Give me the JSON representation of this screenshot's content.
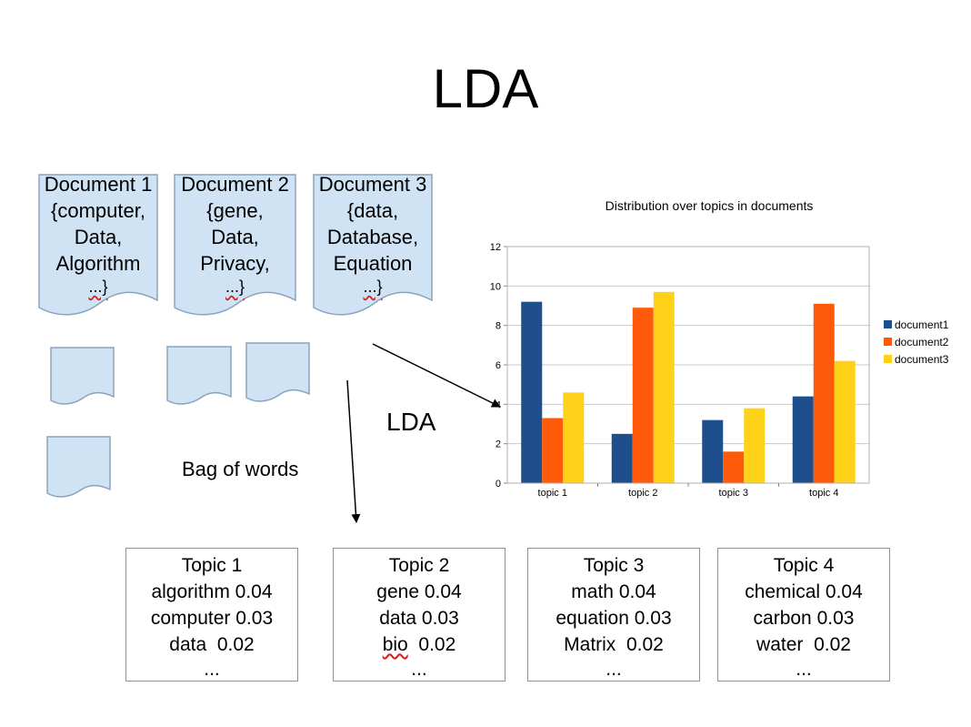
{
  "title": "LDA",
  "documents": [
    {
      "name": "Document 1",
      "line1": "{computer,",
      "line2": "Data,",
      "line3": "Algorithm",
      "line4": "...}"
    },
    {
      "name": "Document 2",
      "line1": "{gene,",
      "line2": "Data,",
      "line3": "Privacy,",
      "line4": "...}"
    },
    {
      "name": "Document 3",
      "line1": "{data,",
      "line2": "Database,",
      "line3": "Equation",
      "line4": "...}"
    }
  ],
  "lda_label": "LDA",
  "bag_of_words_label": "Bag of words",
  "topics": [
    {
      "title": "Topic 1",
      "w1": "algorithm 0.04",
      "w2": "computer 0.03",
      "w3": "data  0.02",
      "more": "..."
    },
    {
      "title": "Topic 2",
      "w1": "gene 0.04",
      "w2": "data 0.03",
      "w3_word": "bio",
      "w3_val": "0.02",
      "more": "..."
    },
    {
      "title": "Topic 3",
      "w1": "math 0.04",
      "w2": "equation 0.03",
      "w3": "Matrix  0.02",
      "more": "..."
    },
    {
      "title": "Topic 4",
      "w1": "chemical 0.04",
      "w2": "carbon 0.03",
      "w3": "water  0.02",
      "more": "..."
    }
  ],
  "chart_data": {
    "type": "bar",
    "title": "Distribution over topics in documents",
    "categories": [
      "topic 1",
      "topic 2",
      "topic 3",
      "topic 4"
    ],
    "series": [
      {
        "name": "document1",
        "color": "#1f4e8c",
        "values": [
          9.2,
          2.5,
          3.2,
          4.4
        ]
      },
      {
        "name": "document2",
        "color": "#ff5a0a",
        "values": [
          3.3,
          8.9,
          1.6,
          9.1
        ]
      },
      {
        "name": "document3",
        "color": "#ffd21a",
        "values": [
          4.6,
          9.7,
          3.8,
          6.2
        ]
      }
    ],
    "ylim": [
      0,
      12
    ],
    "yticks": [
      "0",
      "2",
      "4",
      "6",
      "8",
      "10",
      "12"
    ],
    "grid": true,
    "legend": "right"
  }
}
